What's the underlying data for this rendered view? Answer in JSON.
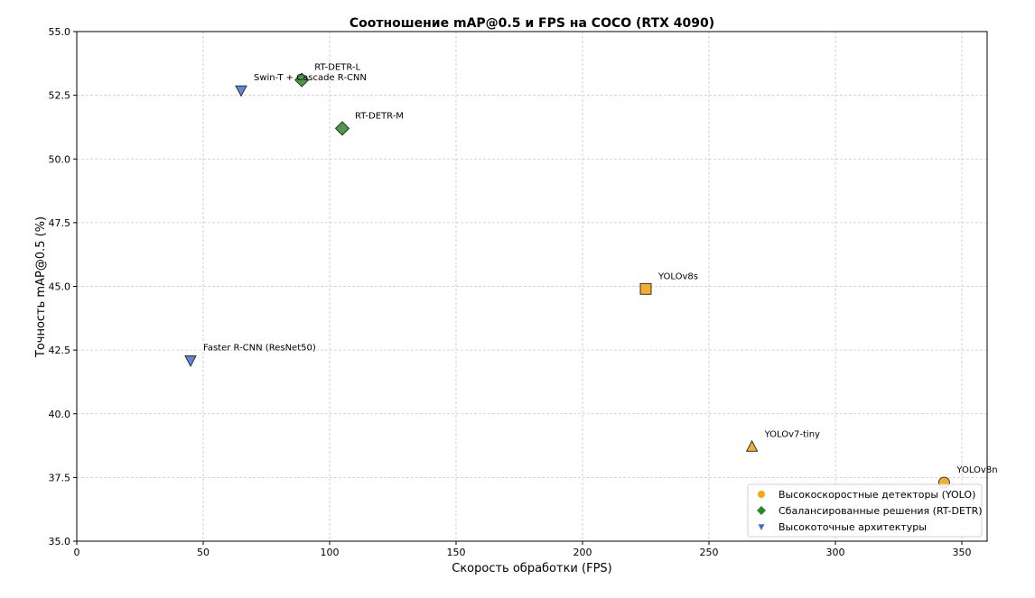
{
  "chart_data": {
    "type": "scatter",
    "title": "Соотношение mAP@0.5 и FPS на COCO (RTX 4090)",
    "xlabel": "Скорость обработки (FPS)",
    "ylabel": "Точность mAP@0.5 (%)",
    "xlim": [
      0,
      360
    ],
    "ylim": [
      35,
      55
    ],
    "xticks": [
      0,
      50,
      100,
      150,
      200,
      250,
      300,
      350
    ],
    "yticks": [
      35.0,
      37.5,
      40.0,
      42.5,
      45.0,
      47.5,
      50.0,
      52.5,
      55.0
    ],
    "grid": true,
    "legend_position": "bottom-right",
    "legend": [
      {
        "label": "Высокоскоростные детекторы (YOLO)",
        "color": "#ffa500",
        "marker": "circle"
      },
      {
        "label": "Сбалансированные решения (RT-DETR)",
        "color": "#228b22",
        "marker": "diamond"
      },
      {
        "label": "Высокоточные архитектуры",
        "color": "#4169e1",
        "marker": "triangle-down"
      }
    ],
    "points": [
      {
        "label": "YOLOv8n",
        "x": 343,
        "y": 37.3,
        "group": 0,
        "marker": "circle"
      },
      {
        "label": "YOLOv8s",
        "x": 225,
        "y": 44.9,
        "group": 0,
        "marker": "square"
      },
      {
        "label": "YOLOv7-tiny",
        "x": 267,
        "y": 38.7,
        "group": 0,
        "marker": "triangle-up"
      },
      {
        "label": "RT-DETR-L",
        "x": 89,
        "y": 53.1,
        "group": 1,
        "marker": "diamond"
      },
      {
        "label": "RT-DETR-M",
        "x": 105,
        "y": 51.2,
        "group": 1,
        "marker": "diamond"
      },
      {
        "label": "Faster R-CNN (ResNet50)",
        "x": 45,
        "y": 42.1,
        "group": 2,
        "marker": "triangle-down"
      },
      {
        "label": "Swin-T + Cascade R-CNN",
        "x": 65,
        "y": 52.7,
        "group": 2,
        "marker": "triangle-down"
      }
    ]
  }
}
